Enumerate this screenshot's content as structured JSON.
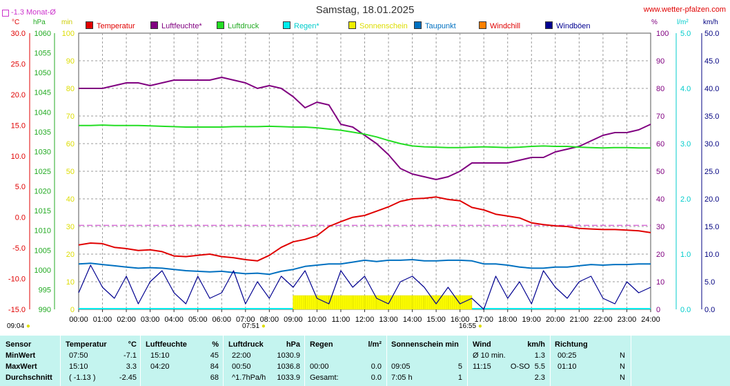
{
  "header": {
    "title": "Samstag, 18.01.2025",
    "site": "www.wetter-pfalzen.com",
    "avg_label": "-1.3 Monat-Ø"
  },
  "legend": [
    {
      "name": "Temperatur",
      "color": "#e00000",
      "text_color": "#e00000"
    },
    {
      "name": "Luftfeuchte*",
      "color": "#800080",
      "text_color": "#800080"
    },
    {
      "name": "Luftdruck",
      "color": "#22dd22",
      "text_color": "#22aa22"
    },
    {
      "name": "Regen*",
      "color": "#00eeee",
      "text_color": "#00cccc"
    },
    {
      "name": "Sonnenschein",
      "color": "#eeee00",
      "text_color": "#dddd00"
    },
    {
      "name": "Taupunkt",
      "color": "#0070c0",
      "text_color": "#0070c0"
    },
    {
      "name": "Windchill",
      "color": "#ff8000",
      "text_color": "#e00000"
    },
    {
      "name": "Windböen",
      "color": "#000090",
      "text_color": "#000090"
    }
  ],
  "units": {
    "temp": "°C",
    "pressure": "hPa",
    "sunshine": "min",
    "humidity": "%",
    "rain": "l/m²",
    "wind": "km/h"
  },
  "markers": {
    "sunrise_left": "09:04",
    "sunrise": "07:51",
    "sunset": "16:55"
  },
  "chart_data": {
    "type": "line",
    "x_hours": [
      0,
      0.5,
      1,
      1.5,
      2,
      2.5,
      3,
      3.5,
      4,
      4.5,
      5,
      5.5,
      6,
      6.5,
      7,
      7.5,
      8,
      8.5,
      9,
      9.5,
      10,
      10.5,
      11,
      11.5,
      12,
      12.5,
      13,
      13.5,
      14,
      14.5,
      15,
      15.5,
      16,
      16.5,
      17,
      17.5,
      18,
      18.5,
      19,
      19.5,
      20,
      20.5,
      21,
      21.5,
      22,
      22.5,
      23,
      23.5,
      24
    ],
    "x_tick_labels": [
      "00:00",
      "01:00",
      "02:00",
      "03:00",
      "04:00",
      "05:00",
      "06:00",
      "07:00",
      "08:00",
      "09:00",
      "10:00",
      "11:00",
      "12:00",
      "13:00",
      "14:00",
      "15:00",
      "16:00",
      "17:00",
      "18:00",
      "19:00",
      "20:00",
      "21:00",
      "22:00",
      "23:00",
      "24:00"
    ],
    "axes": {
      "temp_ticks": [
        "30.0",
        "25.0",
        "20.0",
        "15.0",
        "10.0",
        "5.0",
        "0.0",
        "-5.0",
        "-10.0",
        "-15.0"
      ],
      "temp_range": [
        -15,
        30
      ],
      "pressure_ticks": [
        "1060",
        "1055",
        "1050",
        "1045",
        "1040",
        "1035",
        "1030",
        "1025",
        "1020",
        "1015",
        "1010",
        "1005",
        "1000",
        "995",
        "990"
      ],
      "pressure_range": [
        990,
        1060
      ],
      "sunshine_ticks": [
        "100",
        "90",
        "80",
        "70",
        "60",
        "50",
        "40",
        "30",
        "20",
        "10",
        "0"
      ],
      "sunshine_range": [
        0,
        100
      ],
      "humidity_ticks": [
        "100",
        "90",
        "80",
        "70",
        "60",
        "50",
        "40",
        "30",
        "20",
        "10",
        "0"
      ],
      "humidity_range": [
        0,
        100
      ],
      "rain_ticks": [
        "5.0",
        "4.0",
        "3.0",
        "2.0",
        "1.0",
        "0.0"
      ],
      "rain_range": [
        0,
        5
      ],
      "wind_ticks": [
        "50.0",
        "45.0",
        "40.0",
        "35.0",
        "30.0",
        "25.0",
        "20.0",
        "15.0",
        "10.0",
        "5.0",
        "0.0"
      ],
      "wind_range": [
        0,
        50
      ]
    },
    "series": [
      {
        "name": "Temperatur",
        "axis": "temp",
        "values": [
          -4.5,
          -4.2,
          -4.3,
          -4.9,
          -5.1,
          -5.4,
          -5.3,
          -5.6,
          -6.3,
          -6.4,
          -6.2,
          -6.0,
          -6.4,
          -6.6,
          -6.9,
          -7.1,
          -6.2,
          -4.9,
          -4.0,
          -3.6,
          -3.0,
          -1.5,
          -0.7,
          0.0,
          0.3,
          1.0,
          1.7,
          2.6,
          3.0,
          3.1,
          3.3,
          2.9,
          2.7,
          1.6,
          1.2,
          0.5,
          0.2,
          -0.1,
          -0.9,
          -1.2,
          -1.4,
          -1.5,
          -1.8,
          -1.9,
          -2.0,
          -2.0,
          -2.1,
          -2.2,
          -2.5
        ]
      },
      {
        "name": "Luftfeuchte*",
        "axis": "humidity",
        "values": [
          80,
          80,
          80,
          81,
          82,
          82,
          81,
          82,
          83,
          83,
          83,
          83,
          84,
          83,
          82,
          80,
          81,
          80,
          77,
          73,
          75,
          74,
          67,
          66,
          63,
          60,
          56,
          51,
          49,
          48,
          47,
          48,
          50,
          53,
          53,
          53,
          53,
          54,
          55,
          55,
          57,
          58,
          59,
          61,
          63,
          64,
          64,
          65,
          67
        ]
      },
      {
        "name": "Luftdruck",
        "axis": "pressure",
        "values": [
          1036.6,
          1036.6,
          1036.7,
          1036.6,
          1036.6,
          1036.6,
          1036.5,
          1036.4,
          1036.3,
          1036.2,
          1036.2,
          1036.2,
          1036.2,
          1036.3,
          1036.3,
          1036.3,
          1036.4,
          1036.3,
          1036.2,
          1036.2,
          1036.0,
          1035.7,
          1035.4,
          1034.9,
          1034.4,
          1033.7,
          1032.8,
          1032.0,
          1031.4,
          1031.2,
          1031.1,
          1031.0,
          1031.0,
          1031.1,
          1031.2,
          1031.1,
          1031.0,
          1031.1,
          1031.3,
          1031.4,
          1031.3,
          1031.3,
          1031.1,
          1031.0,
          1030.9,
          1031.0,
          1031.0,
          1030.9,
          1030.9
        ]
      },
      {
        "name": "Taupunkt",
        "axis": "temp",
        "values": [
          -7.6,
          -7.5,
          -7.7,
          -7.9,
          -8.1,
          -8.3,
          -8.2,
          -8.3,
          -8.5,
          -8.7,
          -8.8,
          -8.9,
          -8.8,
          -9.0,
          -9.2,
          -9.1,
          -9.3,
          -8.8,
          -8.5,
          -8.0,
          -7.8,
          -7.6,
          -7.6,
          -7.3,
          -7.0,
          -7.2,
          -7.0,
          -7.0,
          -6.9,
          -7.1,
          -7.1,
          -7.0,
          -7.0,
          -7.1,
          -7.6,
          -7.6,
          -7.8,
          -8.1,
          -8.3,
          -8.3,
          -8.1,
          -8.1,
          -7.9,
          -7.7,
          -7.8,
          -7.7,
          -7.7,
          -7.6,
          -7.6
        ]
      },
      {
        "name": "Windböen",
        "axis": "wind",
        "values": [
          3,
          8,
          4,
          2,
          6,
          1,
          5,
          7,
          3,
          1,
          6,
          2,
          3,
          7,
          1,
          5,
          2,
          6,
          4,
          7,
          2,
          1,
          7,
          4,
          6,
          2,
          1,
          5,
          6,
          4,
          1,
          4,
          1,
          2,
          0,
          6,
          2,
          5,
          1,
          7,
          4,
          2,
          5,
          6,
          2,
          1,
          5,
          3,
          4
        ]
      },
      {
        "name": "Sonnenschein",
        "axis": "sunshine",
        "type": "bar",
        "values": [
          0,
          0,
          0,
          0,
          0,
          0,
          0,
          0,
          0,
          0,
          0,
          0,
          0,
          0,
          0,
          0,
          0,
          0,
          5,
          5,
          5,
          5,
          5,
          5,
          5,
          5,
          5,
          5,
          5,
          5,
          5,
          5,
          5,
          0,
          0,
          0,
          0,
          0,
          0,
          0,
          0,
          0,
          0,
          0,
          0,
          0,
          0,
          0,
          0
        ]
      }
    ],
    "monthly_average_temp": -1.3
  },
  "table": {
    "headers": {
      "sensor": "Sensor",
      "temperature": "Temperatur",
      "temperature_unit": "°C",
      "humidity": "Luftfeuchte",
      "humidity_unit": "%",
      "pressure": "Luftdruck",
      "pressure_unit": "hPa",
      "rain": "Regen",
      "rain_unit": "l/m²",
      "sunshine": "Sonnenschein min",
      "wind": "Wind",
      "wind_unit": "km/h",
      "direction": "Richtung"
    },
    "rows": [
      {
        "label": "MinWert",
        "temp_time": "07:50",
        "temp_val": "-7.1",
        "hum_time": "15:10",
        "hum_val": "45",
        "pres_time": "22:00",
        "pres_val": "1030.9",
        "rain_time": "",
        "rain_val": "",
        "sun_time": "",
        "sun_val": "",
        "wind_time": "Ø 10 min.",
        "wind_dir": "",
        "wind_val": "1.3",
        "dir_time": "00:25",
        "dir_val": "N"
      },
      {
        "label": "MaxWert",
        "temp_time": "15:10",
        "temp_val": "3.3",
        "hum_time": "04:20",
        "hum_val": "84",
        "pres_time": "00:50",
        "pres_val": "1036.8",
        "rain_time": "00:00",
        "rain_val": "0.0",
        "sun_time": "09:05",
        "sun_val": "5",
        "wind_time": "11:15",
        "wind_dir": "O-SO",
        "wind_val": "5.5",
        "dir_time": "01:10",
        "dir_val": "N"
      },
      {
        "label": "Durchschnitt",
        "temp_time": "( -1.13 )",
        "temp_val": "-2.45",
        "hum_time": "",
        "hum_val": "68",
        "pres_time": "^1.7hPa/h",
        "pres_val": "1033.9",
        "rain_time": "Gesamt:",
        "rain_val": "0.0",
        "sun_time": "7:05 h",
        "sun_val": "1",
        "wind_time": "",
        "wind_dir": "",
        "wind_val": "2.3",
        "dir_time": "",
        "dir_val": "N"
      }
    ]
  }
}
